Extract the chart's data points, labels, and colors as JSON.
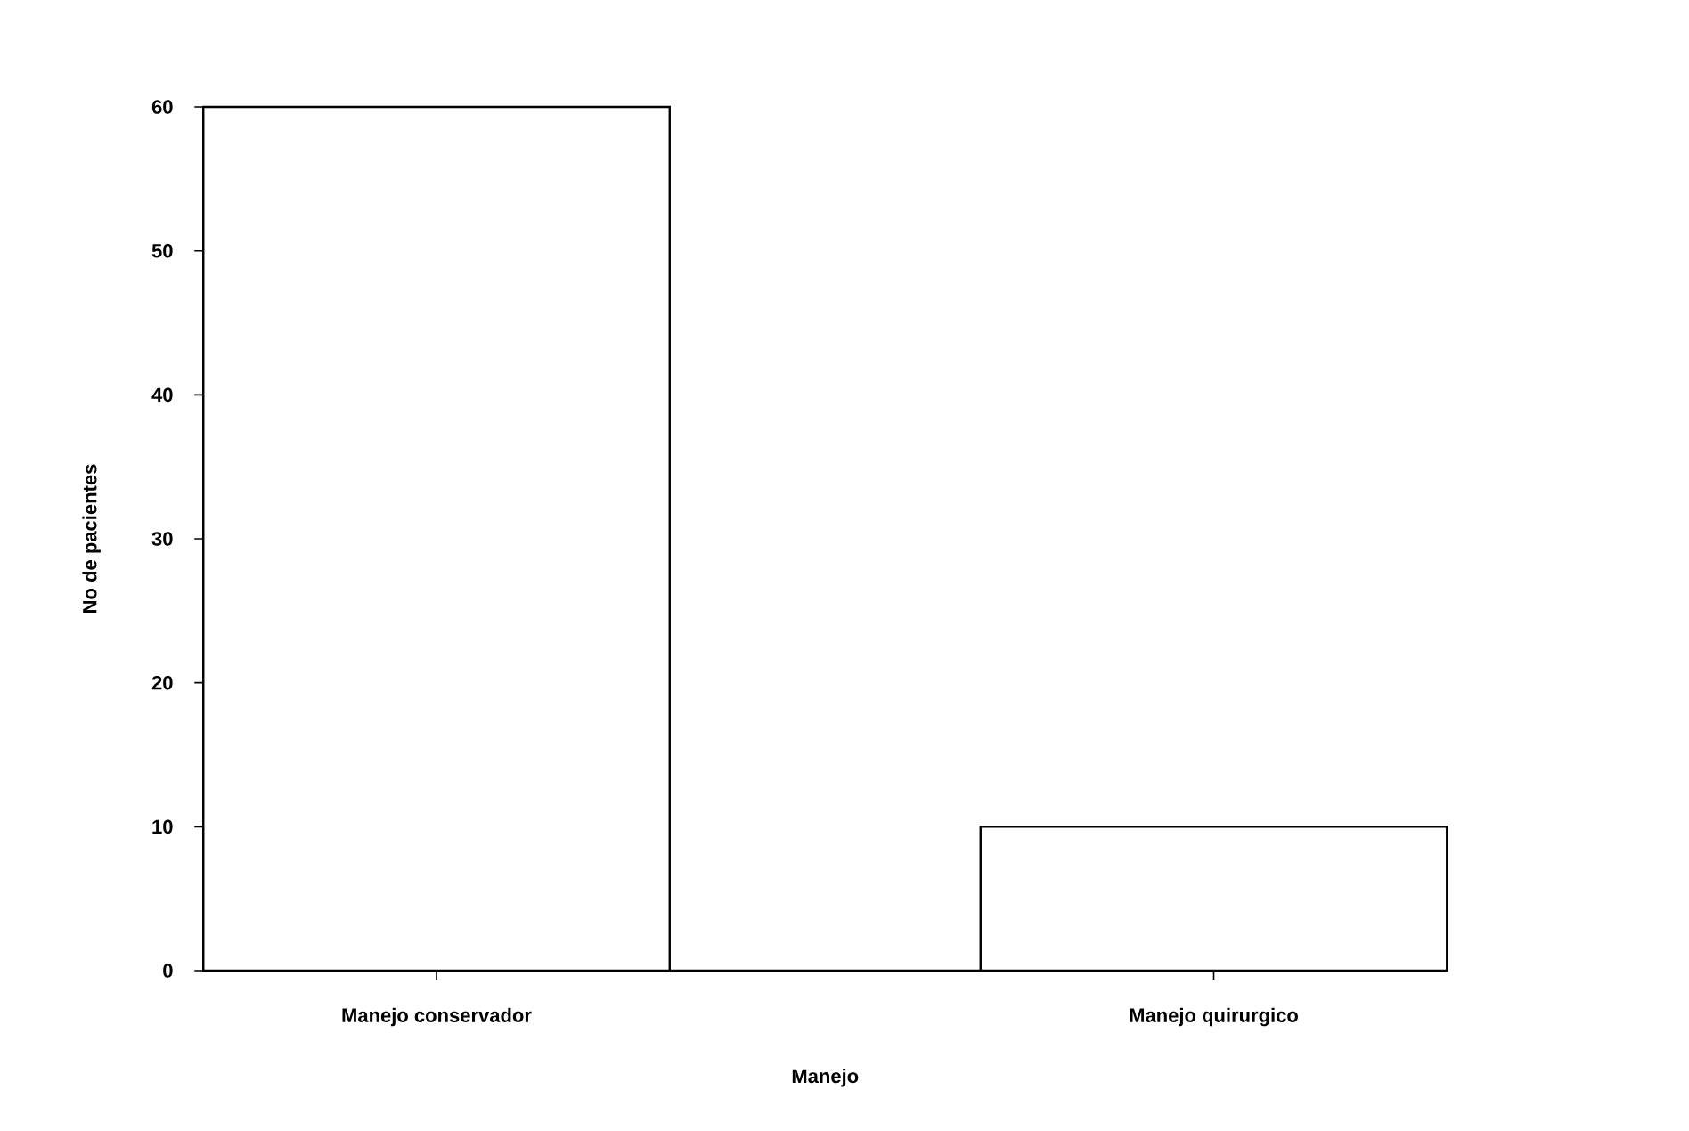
{
  "chart_data": {
    "type": "bar",
    "xlabel": "Manejo",
    "ylabel": "No de pacientes",
    "categories": [
      "Manejo conservador",
      "Manejo quirurgico"
    ],
    "values": [
      60,
      10
    ],
    "color": "#000000",
    "ylim": [
      0,
      60
    ],
    "yticks": [
      0,
      10,
      20,
      30,
      40,
      50,
      60
    ]
  }
}
